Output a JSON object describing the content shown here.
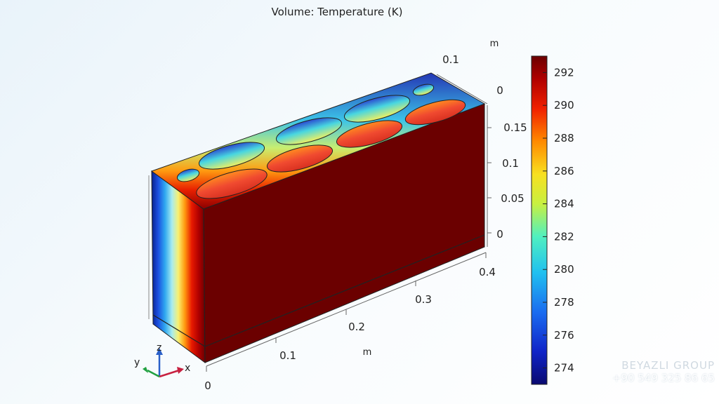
{
  "plot": {
    "title": "Volume: Temperature (K)"
  },
  "axes": {
    "x_unit": "m",
    "z_unit": "m",
    "x_ticks": [
      "0",
      "0.1",
      "0.2",
      "0.3",
      "0.4"
    ],
    "y_ticks": [
      "0.1",
      "0"
    ],
    "z_ticks": [
      "0.15",
      "0.1",
      "0.05",
      "0"
    ]
  },
  "colorbar": {
    "ticks": [
      "292",
      "290",
      "288",
      "286",
      "284",
      "282",
      "280",
      "278",
      "276",
      "274"
    ],
    "range": [
      273,
      293
    ]
  },
  "triad": {
    "x": "x",
    "y": "y",
    "z": "z"
  },
  "watermark": {
    "brand": "BEYAZLI GROUP",
    "phone": "+90 549 325 86 65"
  },
  "colors": {
    "hot": "#6b0000",
    "cold": "#0a1a8a"
  }
}
